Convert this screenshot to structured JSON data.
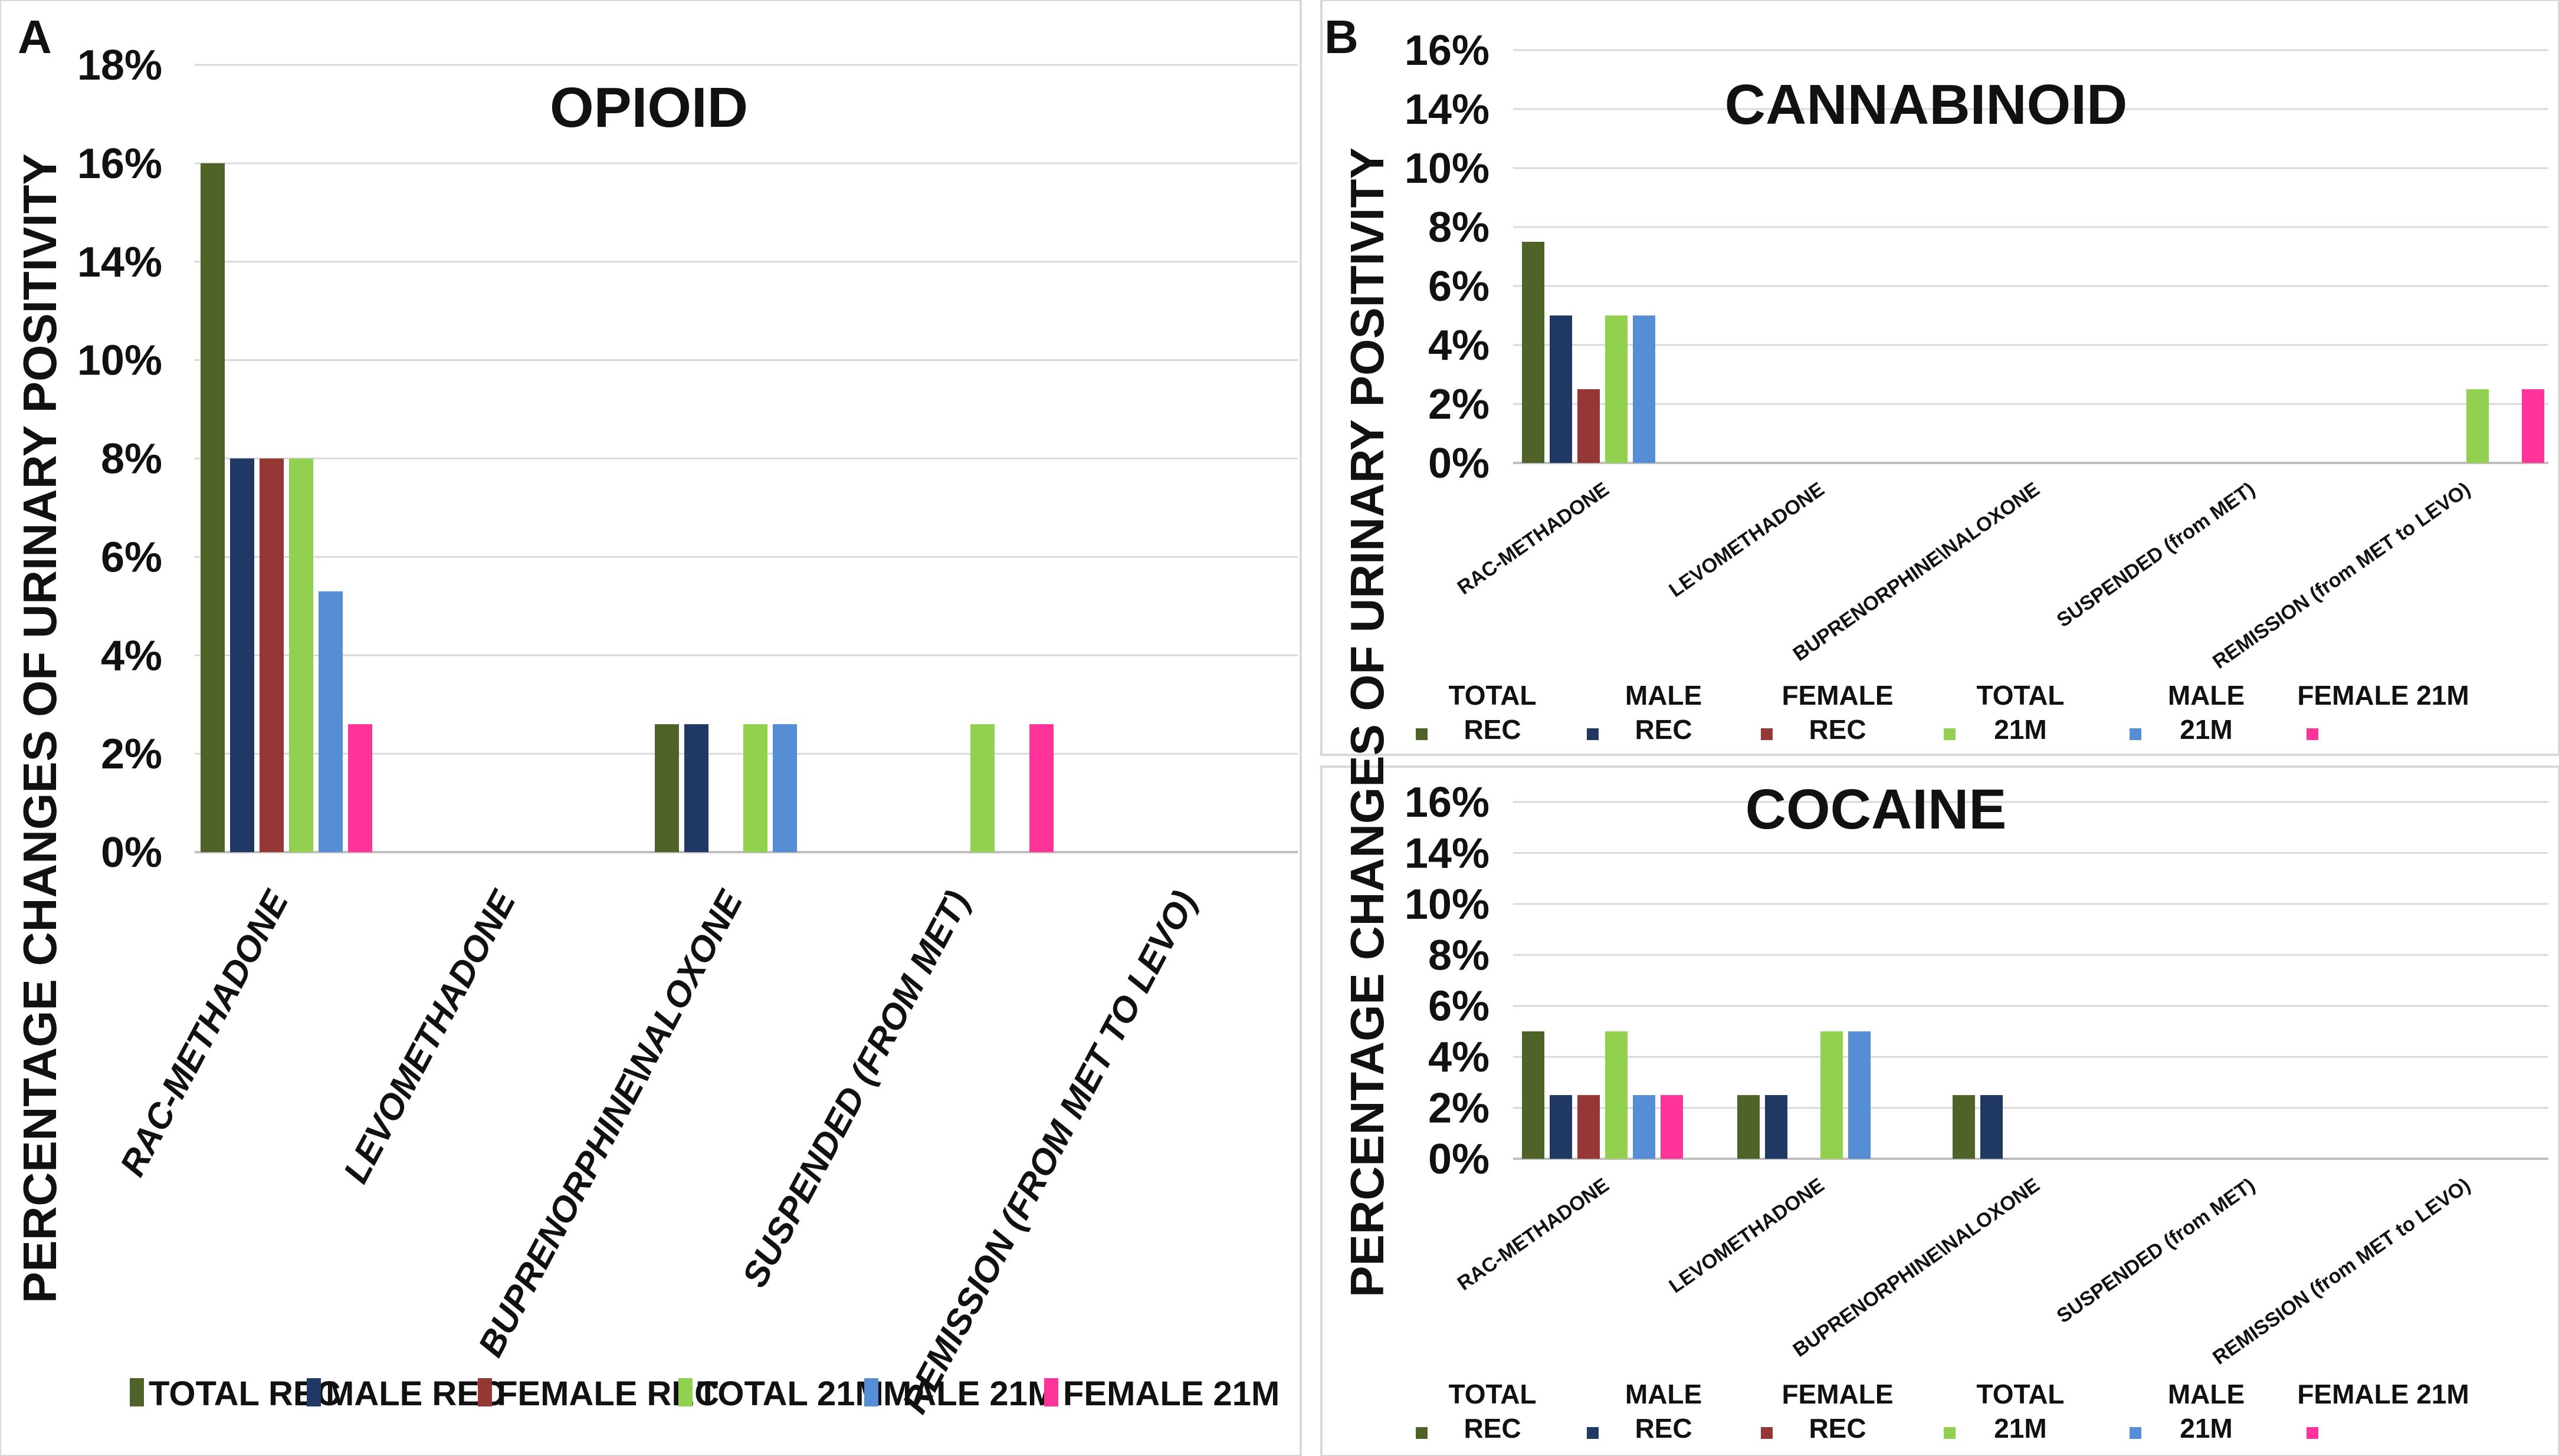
{
  "panels": {
    "a": "A",
    "b": "B"
  },
  "shared_ylabel": "PERCENTAGE CHANGES OF URINARY POSITIVITY",
  "colors": {
    "TOTAL REC": "#4f6228",
    "MALE REC": "#1f3864",
    "FEMALE REC": "#953735",
    "TOTAL 21M": "#92d050",
    "MALE 21M": "#558ed5",
    "FEMALE 21M": "#ff3399"
  },
  "legend_main": {
    "items": [
      {
        "label": "TOTAL REC",
        "color": "#4f6228"
      },
      {
        "label": "MALE REC",
        "color": "#1f3864"
      },
      {
        "label": "FEMALE REC",
        "color": "#953735"
      },
      {
        "label": "TOTAL 21M",
        "color": "#92d050"
      },
      {
        "label": "MALE 21M",
        "color": "#558ed5"
      },
      {
        "label": "FEMALE 21M",
        "color": "#ff3399"
      }
    ]
  },
  "legend_small": {
    "items": [
      {
        "line1": "TOTAL",
        "line2": "REC",
        "color": "#4f6228"
      },
      {
        "line1": "MALE",
        "line2": "REC",
        "color": "#1f3864"
      },
      {
        "line1": "FEMALE",
        "line2": "REC",
        "color": "#953735"
      },
      {
        "line1": "TOTAL",
        "line2": "21M",
        "color": "#92d050"
      },
      {
        "line1": "MALE",
        "line2": "21M",
        "color": "#558ed5"
      },
      {
        "line1": "FEMALE 21M",
        "line2": "",
        "color": "#ff3399"
      }
    ]
  },
  "chart_data": [
    {
      "type": "bar",
      "title": "OPIOID",
      "ylabel": "PERCENTAGE CHANGES OF URINARY POSITIVITY",
      "categories": [
        "RAC-METHADONE",
        "LEVOMETHADONE",
        "BUPRENORPHINE\\NALOXONE",
        "SUSPENDED (from MET)",
        "REMISSION (from MET to LEVO)"
      ],
      "yticks": [
        0,
        2,
        4,
        6,
        8,
        10,
        14,
        16,
        18
      ],
      "ytick_labels": [
        "0%",
        "2%",
        "4%",
        "6%",
        "8%",
        "10%",
        "14%",
        "16%",
        "18%"
      ],
      "ylim": [
        0,
        18
      ],
      "series": [
        {
          "name": "TOTAL REC",
          "values": [
            16,
            0,
            2.6,
            0,
            0
          ]
        },
        {
          "name": "MALE REC",
          "values": [
            8,
            0,
            2.6,
            0,
            0
          ]
        },
        {
          "name": "FEMALE REC",
          "values": [
            8,
            0,
            0,
            0,
            0
          ]
        },
        {
          "name": "TOTAL 21M",
          "values": [
            8,
            0,
            2.6,
            2.6,
            0
          ]
        },
        {
          "name": "MALE 21M",
          "values": [
            5.3,
            0,
            2.6,
            0,
            0
          ]
        },
        {
          "name": "FEMALE 21M",
          "values": [
            2.6,
            0,
            0,
            2.6,
            0
          ]
        }
      ]
    },
    {
      "type": "bar",
      "title": "CANNABINOID",
      "categories": [
        "RAC-METHADONE",
        "LEVOMETHADONE",
        "BUPRENORPHINE\\NALOXONE",
        "SUSPENDED (from MET)",
        "REMISSION (from MET to LEVO)"
      ],
      "yticks": [
        0,
        2,
        4,
        6,
        8,
        10,
        14,
        16
      ],
      "ytick_labels": [
        "0%",
        "2%",
        "4%",
        "6%",
        "8%",
        "10%",
        "14%",
        "16%"
      ],
      "ylim": [
        0,
        16
      ],
      "series": [
        {
          "name": "TOTAL REC",
          "values": [
            7.5,
            0,
            0,
            0,
            0
          ]
        },
        {
          "name": "MALE REC",
          "values": [
            5,
            0,
            0,
            0,
            0
          ]
        },
        {
          "name": "FEMALE REC",
          "values": [
            2.5,
            0,
            0,
            0,
            0
          ]
        },
        {
          "name": "TOTAL 21M",
          "values": [
            5,
            0,
            0,
            0,
            2.5
          ]
        },
        {
          "name": "MALE 21M",
          "values": [
            5,
            0,
            0,
            0,
            0
          ]
        },
        {
          "name": "FEMALE 21M",
          "values": [
            0,
            0,
            0,
            0,
            2.5
          ]
        }
      ]
    },
    {
      "type": "bar",
      "title": "COCAINE",
      "categories": [
        "RAC-METHADONE",
        "LEVOMETHADONE",
        "BUPRENORPHINE\\NALOXONE",
        "SUSPENDED (from MET)",
        "REMISSION (from MET to LEVO)"
      ],
      "yticks": [
        0,
        2,
        4,
        6,
        8,
        10,
        14,
        16
      ],
      "ytick_labels": [
        "0%",
        "2%",
        "4%",
        "6%",
        "8%",
        "10%",
        "14%",
        "16%"
      ],
      "ylim": [
        0,
        16
      ],
      "series": [
        {
          "name": "TOTAL REC",
          "values": [
            5,
            2.5,
            2.5,
            0,
            0
          ]
        },
        {
          "name": "MALE REC",
          "values": [
            2.5,
            2.5,
            2.5,
            0,
            0
          ]
        },
        {
          "name": "FEMALE REC",
          "values": [
            2.5,
            0,
            0,
            0,
            0
          ]
        },
        {
          "name": "TOTAL 21M",
          "values": [
            5,
            5,
            0,
            0,
            0
          ]
        },
        {
          "name": "MALE 21M",
          "values": [
            2.5,
            5,
            0,
            0,
            0
          ]
        },
        {
          "name": "FEMALE 21M",
          "values": [
            2.5,
            0,
            0,
            0,
            0
          ]
        }
      ]
    }
  ]
}
